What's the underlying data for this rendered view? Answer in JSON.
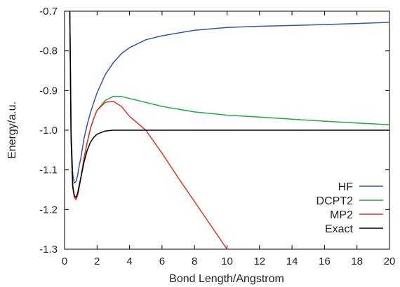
{
  "chart_data": {
    "type": "line",
    "title": "",
    "xlabel": "Bond Length/Angstrom",
    "ylabel": "Energy/a.u.",
    "xlim": [
      0,
      20
    ],
    "ylim": [
      -1.3,
      -0.7
    ],
    "xticks": [
      0,
      2,
      4,
      6,
      8,
      10,
      12,
      14,
      16,
      18,
      20
    ],
    "yticks": [
      -1.3,
      -1.2,
      -1.1,
      -1.0,
      -0.9,
      -0.8,
      -0.7
    ],
    "xtick_labels": [
      "0",
      "2",
      "4",
      "6",
      "8",
      "10",
      "12",
      "14",
      "16",
      "18",
      "20"
    ],
    "ytick_labels": [
      "-1.3",
      "-1.2",
      "-1.1",
      "-1.0",
      "-0.9",
      "-0.8",
      "-0.7"
    ],
    "grid": false,
    "legend_position": "bottom-right",
    "series": [
      {
        "name": "HF",
        "color": "#3355aa",
        "x": [
          0.3,
          0.4,
          0.5,
          0.6,
          0.7,
          0.8,
          0.9,
          1.0,
          1.2,
          1.4,
          1.6,
          1.8,
          2.0,
          2.5,
          3.0,
          3.5,
          4.0,
          5.0,
          6.0,
          8.0,
          10.0,
          12.0,
          15.0,
          18.0,
          20.0
        ],
        "y": [
          -0.6,
          -1.0,
          -1.11,
          -1.133,
          -1.13,
          -1.115,
          -1.09,
          -1.07,
          -1.02,
          -0.985,
          -0.955,
          -0.93,
          -0.906,
          -0.86,
          -0.83,
          -0.807,
          -0.792,
          -0.772,
          -0.762,
          -0.748,
          -0.741,
          -0.738,
          -0.735,
          -0.731,
          -0.728
        ]
      },
      {
        "name": "DCPT2",
        "color": "#22aa44",
        "x": [
          0.3,
          0.4,
          0.5,
          0.6,
          0.7,
          0.8,
          0.9,
          1.0,
          1.2,
          1.4,
          1.6,
          1.8,
          2.0,
          2.5,
          3.0,
          3.5,
          4.0,
          5.0,
          6.0,
          8.0,
          10.0,
          12.0,
          15.0,
          18.0,
          20.0
        ],
        "y": [
          -0.6,
          -1.02,
          -1.14,
          -1.165,
          -1.17,
          -1.16,
          -1.14,
          -1.12,
          -1.07,
          -1.03,
          -0.995,
          -0.97,
          -0.95,
          -0.925,
          -0.915,
          -0.915,
          -0.92,
          -0.93,
          -0.94,
          -0.954,
          -0.962,
          -0.967,
          -0.975,
          -0.982,
          -0.986
        ]
      },
      {
        "name": "MP2",
        "color": "#dd3322",
        "x": [
          0.3,
          0.4,
          0.5,
          0.6,
          0.7,
          0.8,
          0.9,
          1.0,
          1.2,
          1.4,
          1.6,
          1.8,
          2.0,
          2.5,
          3.0,
          3.5,
          4.0,
          5.0,
          6.0,
          7.0,
          8.0,
          9.0,
          10.0
        ],
        "y": [
          -0.6,
          -1.02,
          -1.145,
          -1.17,
          -1.175,
          -1.165,
          -1.145,
          -1.12,
          -1.07,
          -1.03,
          -0.995,
          -0.97,
          -0.95,
          -0.93,
          -0.927,
          -0.94,
          -0.965,
          -1.0,
          -1.058,
          -1.12,
          -1.18,
          -1.24,
          -1.3
        ]
      },
      {
        "name": "Exact",
        "color": "#000000",
        "x": [
          0.3,
          0.4,
          0.5,
          0.6,
          0.7,
          0.8,
          0.9,
          1.0,
          1.2,
          1.4,
          1.6,
          1.8,
          2.0,
          2.5,
          3.0,
          3.5,
          4.0,
          5.0,
          6.0,
          8.0,
          10.0,
          15.0,
          20.0
        ],
        "y": [
          -0.6,
          -1.02,
          -1.14,
          -1.165,
          -1.17,
          -1.16,
          -1.14,
          -1.12,
          -1.08,
          -1.05,
          -1.03,
          -1.018,
          -1.01,
          -1.002,
          -1.0,
          -1.0,
          -1.0,
          -1.0,
          -1.0,
          -1.0,
          -1.0,
          -1.0,
          -1.0
        ]
      }
    ]
  }
}
